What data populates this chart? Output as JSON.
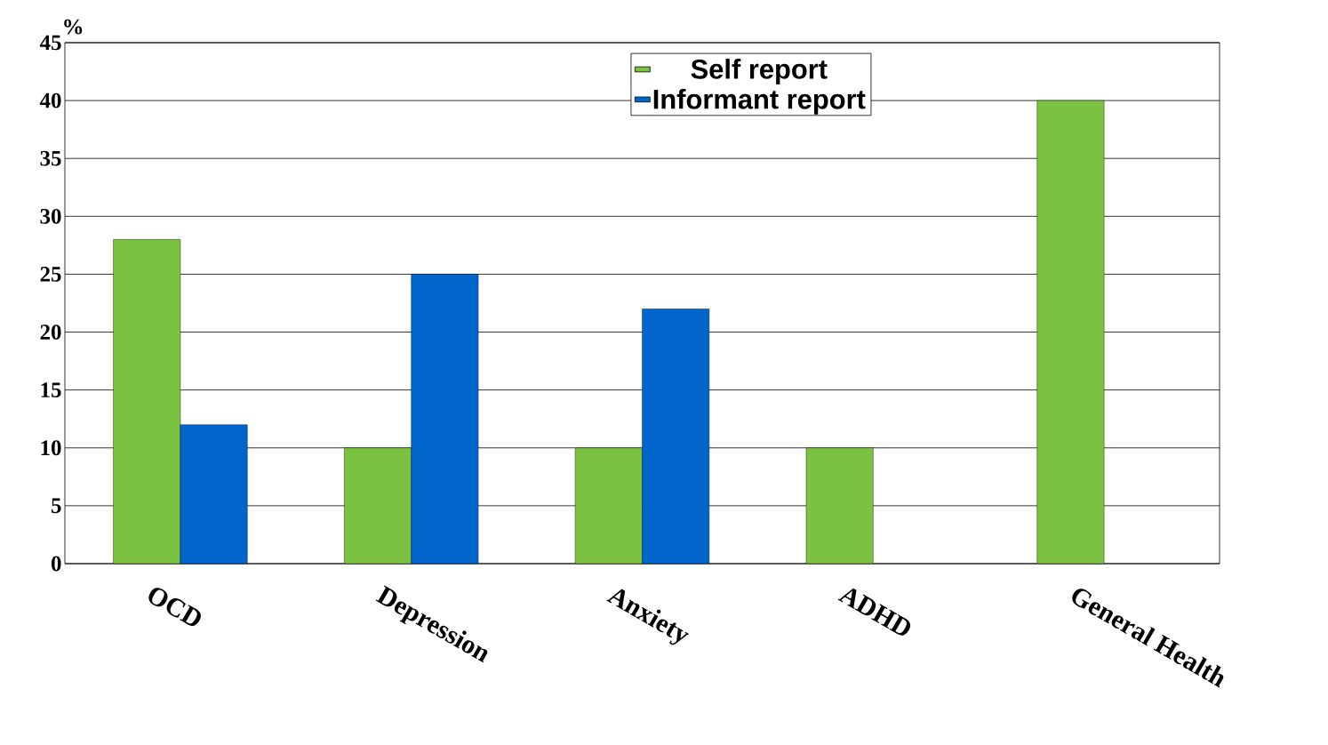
{
  "chart_data": {
    "type": "bar",
    "ylabel": "%",
    "categories": [
      "OCD",
      "Depression",
      "Anxiety",
      "ADHD",
      "General Health"
    ],
    "series": [
      {
        "name": "Self report",
        "color": "#7cc242",
        "values": [
          28,
          10,
          10,
          10,
          40
        ]
      },
      {
        "name": "Informant report",
        "color": "#0066cc",
        "values": [
          12,
          25,
          22,
          null,
          null
        ]
      }
    ],
    "ylim": [
      0,
      45
    ],
    "yticks": [
      0,
      5,
      10,
      15,
      20,
      25,
      30,
      35,
      40,
      45
    ],
    "grid": "y",
    "legend": "top"
  }
}
